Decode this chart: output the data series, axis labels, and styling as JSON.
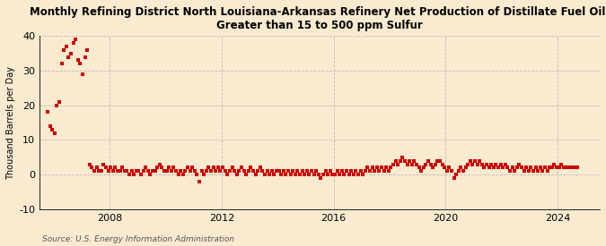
{
  "title": "Monthly Refining District North Louisiana-Arkansas Refinery Net Production of Distillate Fuel Oil,\nGreater than 15 to 500 ppm Sulfur",
  "ylabel": "Thousand Barrels per Day",
  "source": "Source: U.S. Energy Information Administration",
  "background_color": "#faebd0",
  "dot_color": "#cc0000",
  "marker": "s",
  "markersize": 2.2,
  "ylim": [
    -10,
    40
  ],
  "yticks": [
    -10,
    0,
    10,
    20,
    30,
    40
  ],
  "xlim_start": 2005.5,
  "xlim_end": 2025.5,
  "xticks": [
    2008,
    2012,
    2016,
    2020,
    2024
  ],
  "data": {
    "2005-10": 18,
    "2005-11": 14,
    "2005-12": 13,
    "2006-01": 12,
    "2006-02": 20,
    "2006-03": 21,
    "2006-04": 32,
    "2006-05": 36,
    "2006-06": 37,
    "2006-07": 34,
    "2006-08": 35,
    "2006-09": 38,
    "2006-10": 39,
    "2006-11": 33,
    "2006-12": 32,
    "2007-01": 29,
    "2007-02": 34,
    "2007-03": 36,
    "2007-04": 3,
    "2007-05": 2,
    "2007-06": 1,
    "2007-07": 2,
    "2007-08": 1,
    "2007-09": 1,
    "2007-10": 3,
    "2007-11": 2,
    "2007-12": 1,
    "2008-01": 2,
    "2008-02": 1,
    "2008-03": 2,
    "2008-04": 1,
    "2008-05": 1,
    "2008-06": 2,
    "2008-07": 1,
    "2008-08": 1,
    "2008-09": 0,
    "2008-10": 1,
    "2008-11": 0,
    "2008-12": 1,
    "2009-01": 1,
    "2009-02": 0,
    "2009-03": 1,
    "2009-04": 2,
    "2009-05": 1,
    "2009-06": 0,
    "2009-07": 1,
    "2009-08": 1,
    "2009-09": 2,
    "2009-10": 3,
    "2009-11": 2,
    "2009-12": 1,
    "2010-01": 1,
    "2010-02": 2,
    "2010-03": 1,
    "2010-04": 2,
    "2010-05": 1,
    "2010-06": 0,
    "2010-07": 1,
    "2010-08": 0,
    "2010-09": 1,
    "2010-10": 2,
    "2010-11": 1,
    "2010-12": 2,
    "2011-01": 1,
    "2011-02": 0,
    "2011-03": -2,
    "2011-04": 1,
    "2011-05": 0,
    "2011-06": 1,
    "2011-07": 2,
    "2011-08": 1,
    "2011-09": 2,
    "2011-10": 1,
    "2011-11": 2,
    "2011-12": 1,
    "2012-01": 2,
    "2012-02": 1,
    "2012-03": 0,
    "2012-04": 1,
    "2012-05": 2,
    "2012-06": 1,
    "2012-07": 0,
    "2012-08": 1,
    "2012-09": 2,
    "2012-10": 1,
    "2012-11": 0,
    "2012-12": 1,
    "2013-01": 2,
    "2013-02": 1,
    "2013-03": 0,
    "2013-04": 1,
    "2013-05": 2,
    "2013-06": 1,
    "2013-07": 0,
    "2013-08": 1,
    "2013-09": 0,
    "2013-10": 1,
    "2013-11": 0,
    "2013-12": 1,
    "2014-01": 1,
    "2014-02": 0,
    "2014-03": 1,
    "2014-04": 0,
    "2014-05": 1,
    "2014-06": 0,
    "2014-07": 1,
    "2014-08": 0,
    "2014-09": 1,
    "2014-10": 0,
    "2014-11": 1,
    "2014-12": 0,
    "2015-01": 1,
    "2015-02": 0,
    "2015-03": 1,
    "2015-04": 0,
    "2015-05": 1,
    "2015-06": 0,
    "2015-07": -1,
    "2015-08": 0,
    "2015-09": 1,
    "2015-10": 0,
    "2015-11": 1,
    "2015-12": 0,
    "2016-01": 0,
    "2016-02": 1,
    "2016-03": 0,
    "2016-04": 1,
    "2016-05": 0,
    "2016-06": 1,
    "2016-07": 0,
    "2016-08": 1,
    "2016-09": 0,
    "2016-10": 1,
    "2016-11": 0,
    "2016-12": 1,
    "2017-01": 0,
    "2017-02": 1,
    "2017-03": 2,
    "2017-04": 1,
    "2017-05": 2,
    "2017-06": 1,
    "2017-07": 2,
    "2017-08": 1,
    "2017-09": 2,
    "2017-10": 1,
    "2017-11": 2,
    "2017-12": 1,
    "2018-01": 2,
    "2018-02": 3,
    "2018-03": 4,
    "2018-04": 3,
    "2018-05": 4,
    "2018-06": 5,
    "2018-07": 4,
    "2018-08": 3,
    "2018-09": 4,
    "2018-10": 3,
    "2018-11": 4,
    "2018-12": 3,
    "2019-01": 2,
    "2019-02": 1,
    "2019-03": 2,
    "2019-04": 3,
    "2019-05": 4,
    "2019-06": 3,
    "2019-07": 2,
    "2019-08": 3,
    "2019-09": 4,
    "2019-10": 4,
    "2019-11": 3,
    "2019-12": 2,
    "2020-01": 1,
    "2020-02": 2,
    "2020-03": 1,
    "2020-04": -1,
    "2020-05": 0,
    "2020-06": 1,
    "2020-07": 2,
    "2020-08": 1,
    "2020-09": 2,
    "2020-10": 3,
    "2020-11": 4,
    "2020-12": 3,
    "2021-01": 4,
    "2021-02": 3,
    "2021-03": 4,
    "2021-04": 3,
    "2021-05": 2,
    "2021-06": 3,
    "2021-07": 2,
    "2021-08": 3,
    "2021-09": 2,
    "2021-10": 3,
    "2021-11": 2,
    "2021-12": 3,
    "2022-01": 2,
    "2022-02": 3,
    "2022-03": 2,
    "2022-04": 1,
    "2022-05": 2,
    "2022-06": 1,
    "2022-07": 2,
    "2022-08": 3,
    "2022-09": 2,
    "2022-10": 1,
    "2022-11": 2,
    "2022-12": 1,
    "2023-01": 2,
    "2023-02": 1,
    "2023-03": 2,
    "2023-04": 1,
    "2023-05": 2,
    "2023-06": 1,
    "2023-07": 2,
    "2023-08": 1,
    "2023-09": 2,
    "2023-10": 2,
    "2023-11": 3,
    "2023-12": 2,
    "2024-01": 2,
    "2024-02": 3,
    "2024-03": 2,
    "2024-04": 2,
    "2024-05": 2,
    "2024-06": 2,
    "2024-07": 2,
    "2024-08": 2,
    "2024-09": 2
  }
}
